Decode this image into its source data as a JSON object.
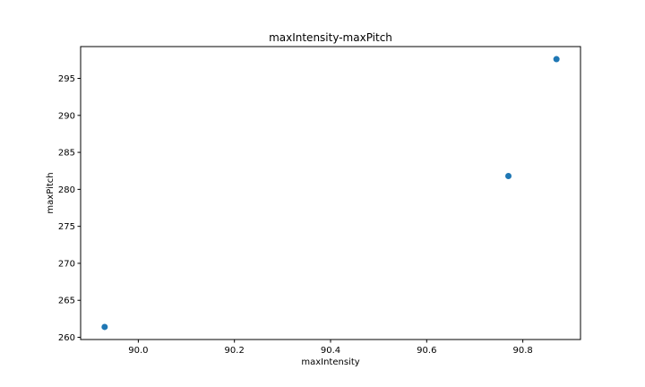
{
  "chart_data": {
    "type": "scatter",
    "title": "maxIntensity-maxPitch",
    "xlabel": "maxIntensity",
    "ylabel": "maxPitch",
    "xlim": [
      89.88,
      90.92
    ],
    "ylim": [
      259.7,
      299.3
    ],
    "xticks": [
      90.0,
      90.2,
      90.4,
      90.6,
      90.8
    ],
    "xtick_labels": [
      "90.0",
      "90.2",
      "90.4",
      "90.6",
      "90.8"
    ],
    "yticks": [
      260,
      265,
      270,
      275,
      280,
      285,
      290,
      295
    ],
    "ytick_labels": [
      "260",
      "265",
      "270",
      "275",
      "280",
      "285",
      "290",
      "295"
    ],
    "grid": false,
    "point_color": "#1f77b4",
    "points": [
      {
        "x": 89.93,
        "y": 261.4
      },
      {
        "x": 90.77,
        "y": 281.8
      },
      {
        "x": 90.87,
        "y": 297.6
      }
    ]
  }
}
